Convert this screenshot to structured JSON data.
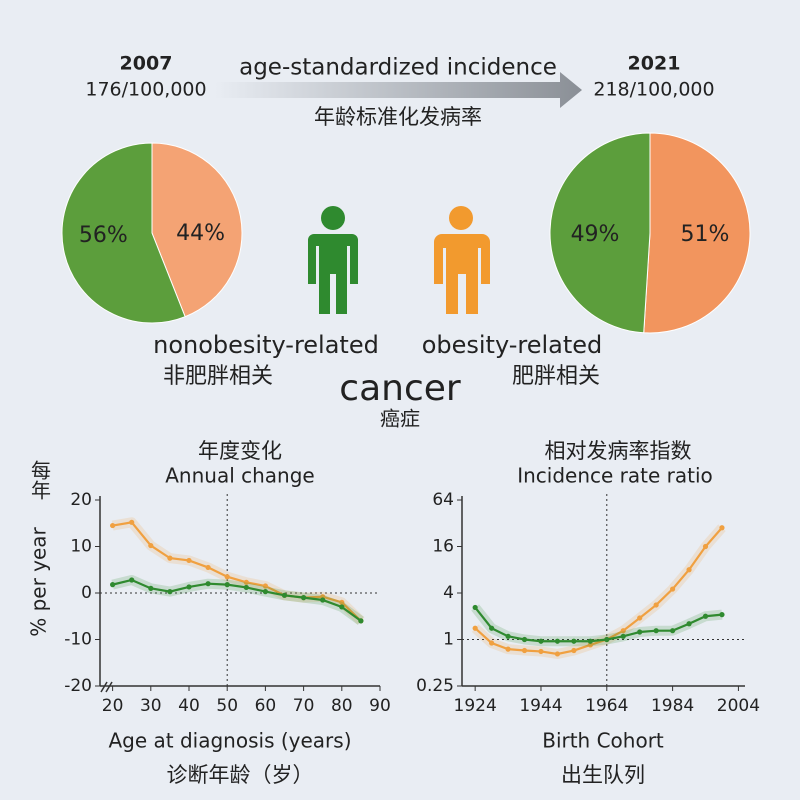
{
  "header": {
    "year_start": "2007",
    "rate_start": "176/100,000",
    "metric": "age-standardized incidence",
    "metric_zh": "年龄标准化发病率",
    "year_end": "2021",
    "rate_end": "218/100,000"
  },
  "legend": [
    {
      "label": "nonobesity-related",
      "label_zh": "非肥胖相关",
      "color": "#3d8a2a"
    },
    {
      "label": "obesity-related",
      "label_zh": "肥胖相关",
      "color": "#e8822e"
    }
  ],
  "center": {
    "label": "cancer",
    "label_zh": "癌症"
  },
  "chart_data": [
    {
      "type": "pie",
      "values": [
        44,
        56
      ],
      "value_labels": [
        "44%",
        "56%"
      ],
      "colors": [
        "#f4a374",
        "#5c9e3c"
      ]
    },
    {
      "type": "pie",
      "values": [
        51,
        49
      ],
      "value_labels": [
        "51%",
        "49%"
      ],
      "colors": [
        "#f2955e",
        "#5c9e3c"
      ]
    },
    {
      "type": "line",
      "title": "年度变化",
      "subtitle": "Annual change",
      "ylabel": "% per year",
      "ylabel_zh": "每年",
      "xlabel": "Age at diagnosis (years)",
      "xlabel_zh": "诊断年龄（岁）",
      "x": [
        20,
        25,
        30,
        35,
        40,
        45,
        50,
        55,
        60,
        65,
        70,
        75,
        80,
        85
      ],
      "series": [
        {
          "color": "#f0a040",
          "values": [
            14.5,
            15.2,
            10.2,
            7.5,
            7.0,
            5.5,
            3.5,
            2.3,
            1.5,
            -0.5,
            -1,
            -0.8,
            -2,
            -6
          ]
        },
        {
          "color": "#2f8a2f",
          "values": [
            1.8,
            2.8,
            1,
            0.3,
            1.3,
            2,
            1.8,
            1.2,
            0.3,
            -0.5,
            -1,
            -1.5,
            -3,
            -6
          ]
        }
      ],
      "xlim": [
        16.7,
        90
      ],
      "xticks": [
        20,
        30,
        40,
        50,
        60,
        70,
        80,
        90
      ],
      "ylim": [
        -20,
        20
      ],
      "yticks": [
        -20,
        -10,
        0,
        10,
        20
      ],
      "ref_x": 50,
      "ref_y": 0
    },
    {
      "type": "line",
      "title": "相对发病率指数",
      "subtitle": "Incidence rate ratio",
      "xlabel": "Birth Cohort",
      "xlabel_zh": "出生队列",
      "yscale": "log",
      "x": [
        1924,
        1929,
        1934,
        1939,
        1944,
        1949,
        1954,
        1959,
        1964,
        1969,
        1974,
        1979,
        1984,
        1989,
        1994,
        1999
      ],
      "series": [
        {
          "color": "#f0a040",
          "values": [
            1.4,
            0.9,
            0.75,
            0.72,
            0.7,
            0.65,
            0.72,
            0.85,
            1,
            1.3,
            1.9,
            2.8,
            4.5,
            8,
            16,
            28
          ]
        },
        {
          "color": "#2f8a2f",
          "values": [
            2.6,
            1.4,
            1.1,
            1.0,
            0.95,
            0.95,
            0.95,
            0.95,
            1.0,
            1.1,
            1.25,
            1.3,
            1.3,
            1.6,
            2.0,
            2.1
          ]
        }
      ],
      "xlim": [
        1920,
        2006
      ],
      "xticks": [
        1924,
        1944,
        1964,
        1984,
        2004
      ],
      "ylim": [
        0.25,
        64
      ],
      "yticks": [
        0.25,
        1,
        4,
        16,
        64
      ],
      "ref_x": 1964,
      "ref_y": 1
    }
  ]
}
